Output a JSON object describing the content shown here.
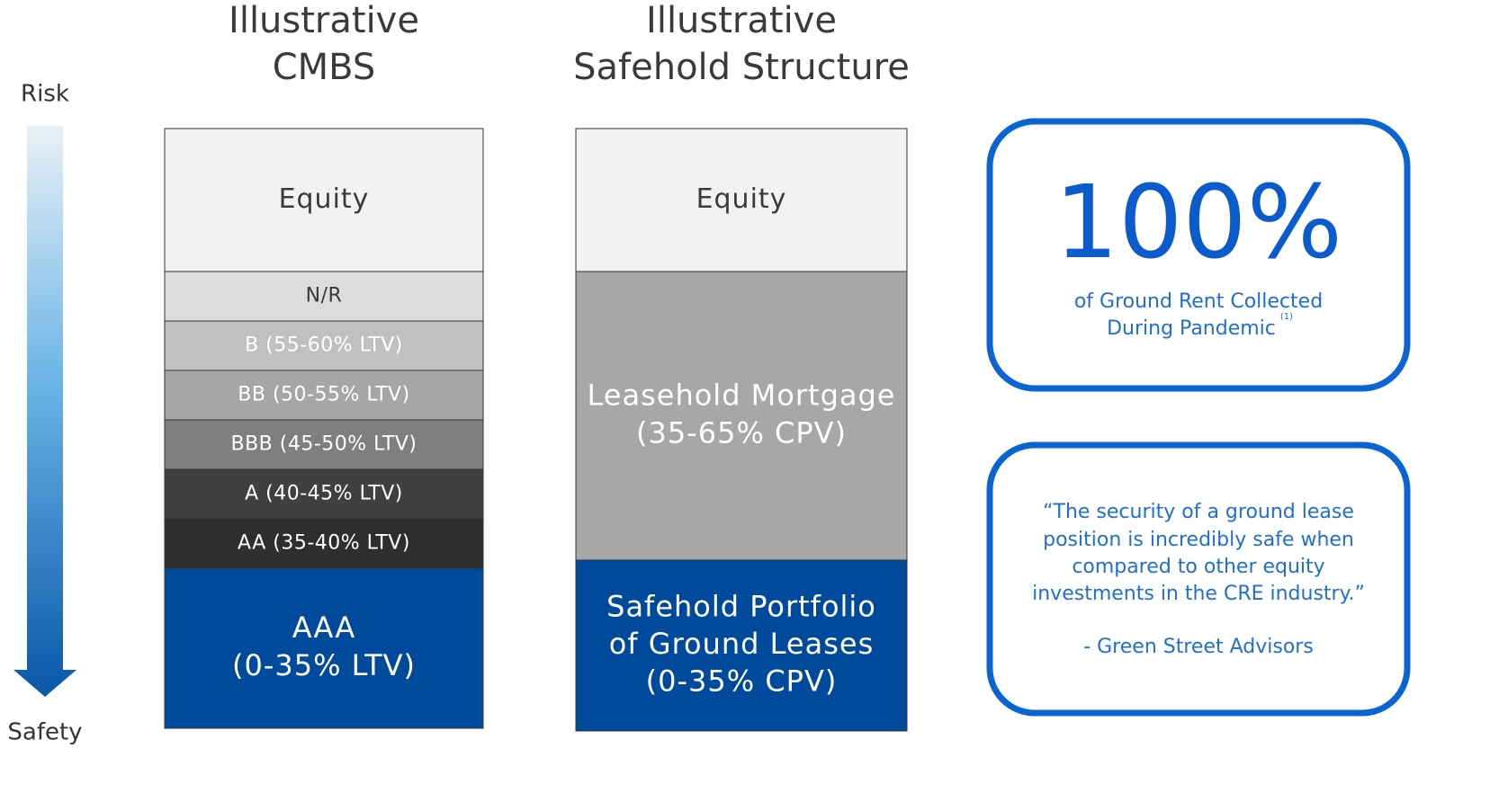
{
  "scale": {
    "top": "Risk",
    "bottom": "Safety"
  },
  "columns": [
    {
      "title": [
        "Illustrative",
        "CMBS"
      ],
      "layers": [
        {
          "lines": [
            "Equity"
          ],
          "color": "#f2f2f2",
          "text_color": "#3a3a3a"
        },
        {
          "lines": [
            "N/R"
          ],
          "color": "#dcdcdc",
          "text_color": "#3a3a3a"
        },
        {
          "lines": [
            "B (55-60% LTV)"
          ],
          "color": "#c0c0c0",
          "text_color": "#ffffff"
        },
        {
          "lines": [
            "BB (50-55% LTV)"
          ],
          "color": "#a6a6a6",
          "text_color": "#ffffff"
        },
        {
          "lines": [
            "BBB (45-50% LTV)"
          ],
          "color": "#7f7f7f",
          "text_color": "#ffffff"
        },
        {
          "lines": [
            "A (40-45% LTV)"
          ],
          "color": "#404040",
          "text_color": "#ffffff"
        },
        {
          "lines": [
            "AA (35-40% LTV)"
          ],
          "color": "#2e2e2e",
          "text_color": "#ffffff"
        },
        {
          "lines": [
            "AAA",
            "(0-35% LTV)"
          ],
          "color": "#004a9c",
          "text_color": "#ffffff"
        }
      ]
    },
    {
      "title": [
        "Illustrative",
        "Safehold Structure"
      ],
      "layers": [
        {
          "lines": [
            "Equity"
          ],
          "color": "#f2f2f2",
          "text_color": "#3a3a3a"
        },
        {
          "lines": [
            "Leasehold Mortgage",
            "(35-65% CPV)"
          ],
          "color": "#a6a7a9",
          "text_color": "#ffffff"
        },
        {
          "lines": [
            "Safehold Portfolio",
            "of Ground Leases",
            "(0-35% CPV)"
          ],
          "color": "#004a9c",
          "text_color": "#ffffff"
        }
      ]
    }
  ],
  "stat_box": {
    "value": "100%",
    "lines": [
      "of Ground Rent Collected",
      "During Pandemic"
    ],
    "footnote": "(1)"
  },
  "quote_box": {
    "lines": [
      "“The security of a ground lease",
      "position is incredibly safe when",
      "compared to other equity",
      "investments in the CRE industry.”"
    ],
    "attribution": "- Green Street Advisors"
  }
}
